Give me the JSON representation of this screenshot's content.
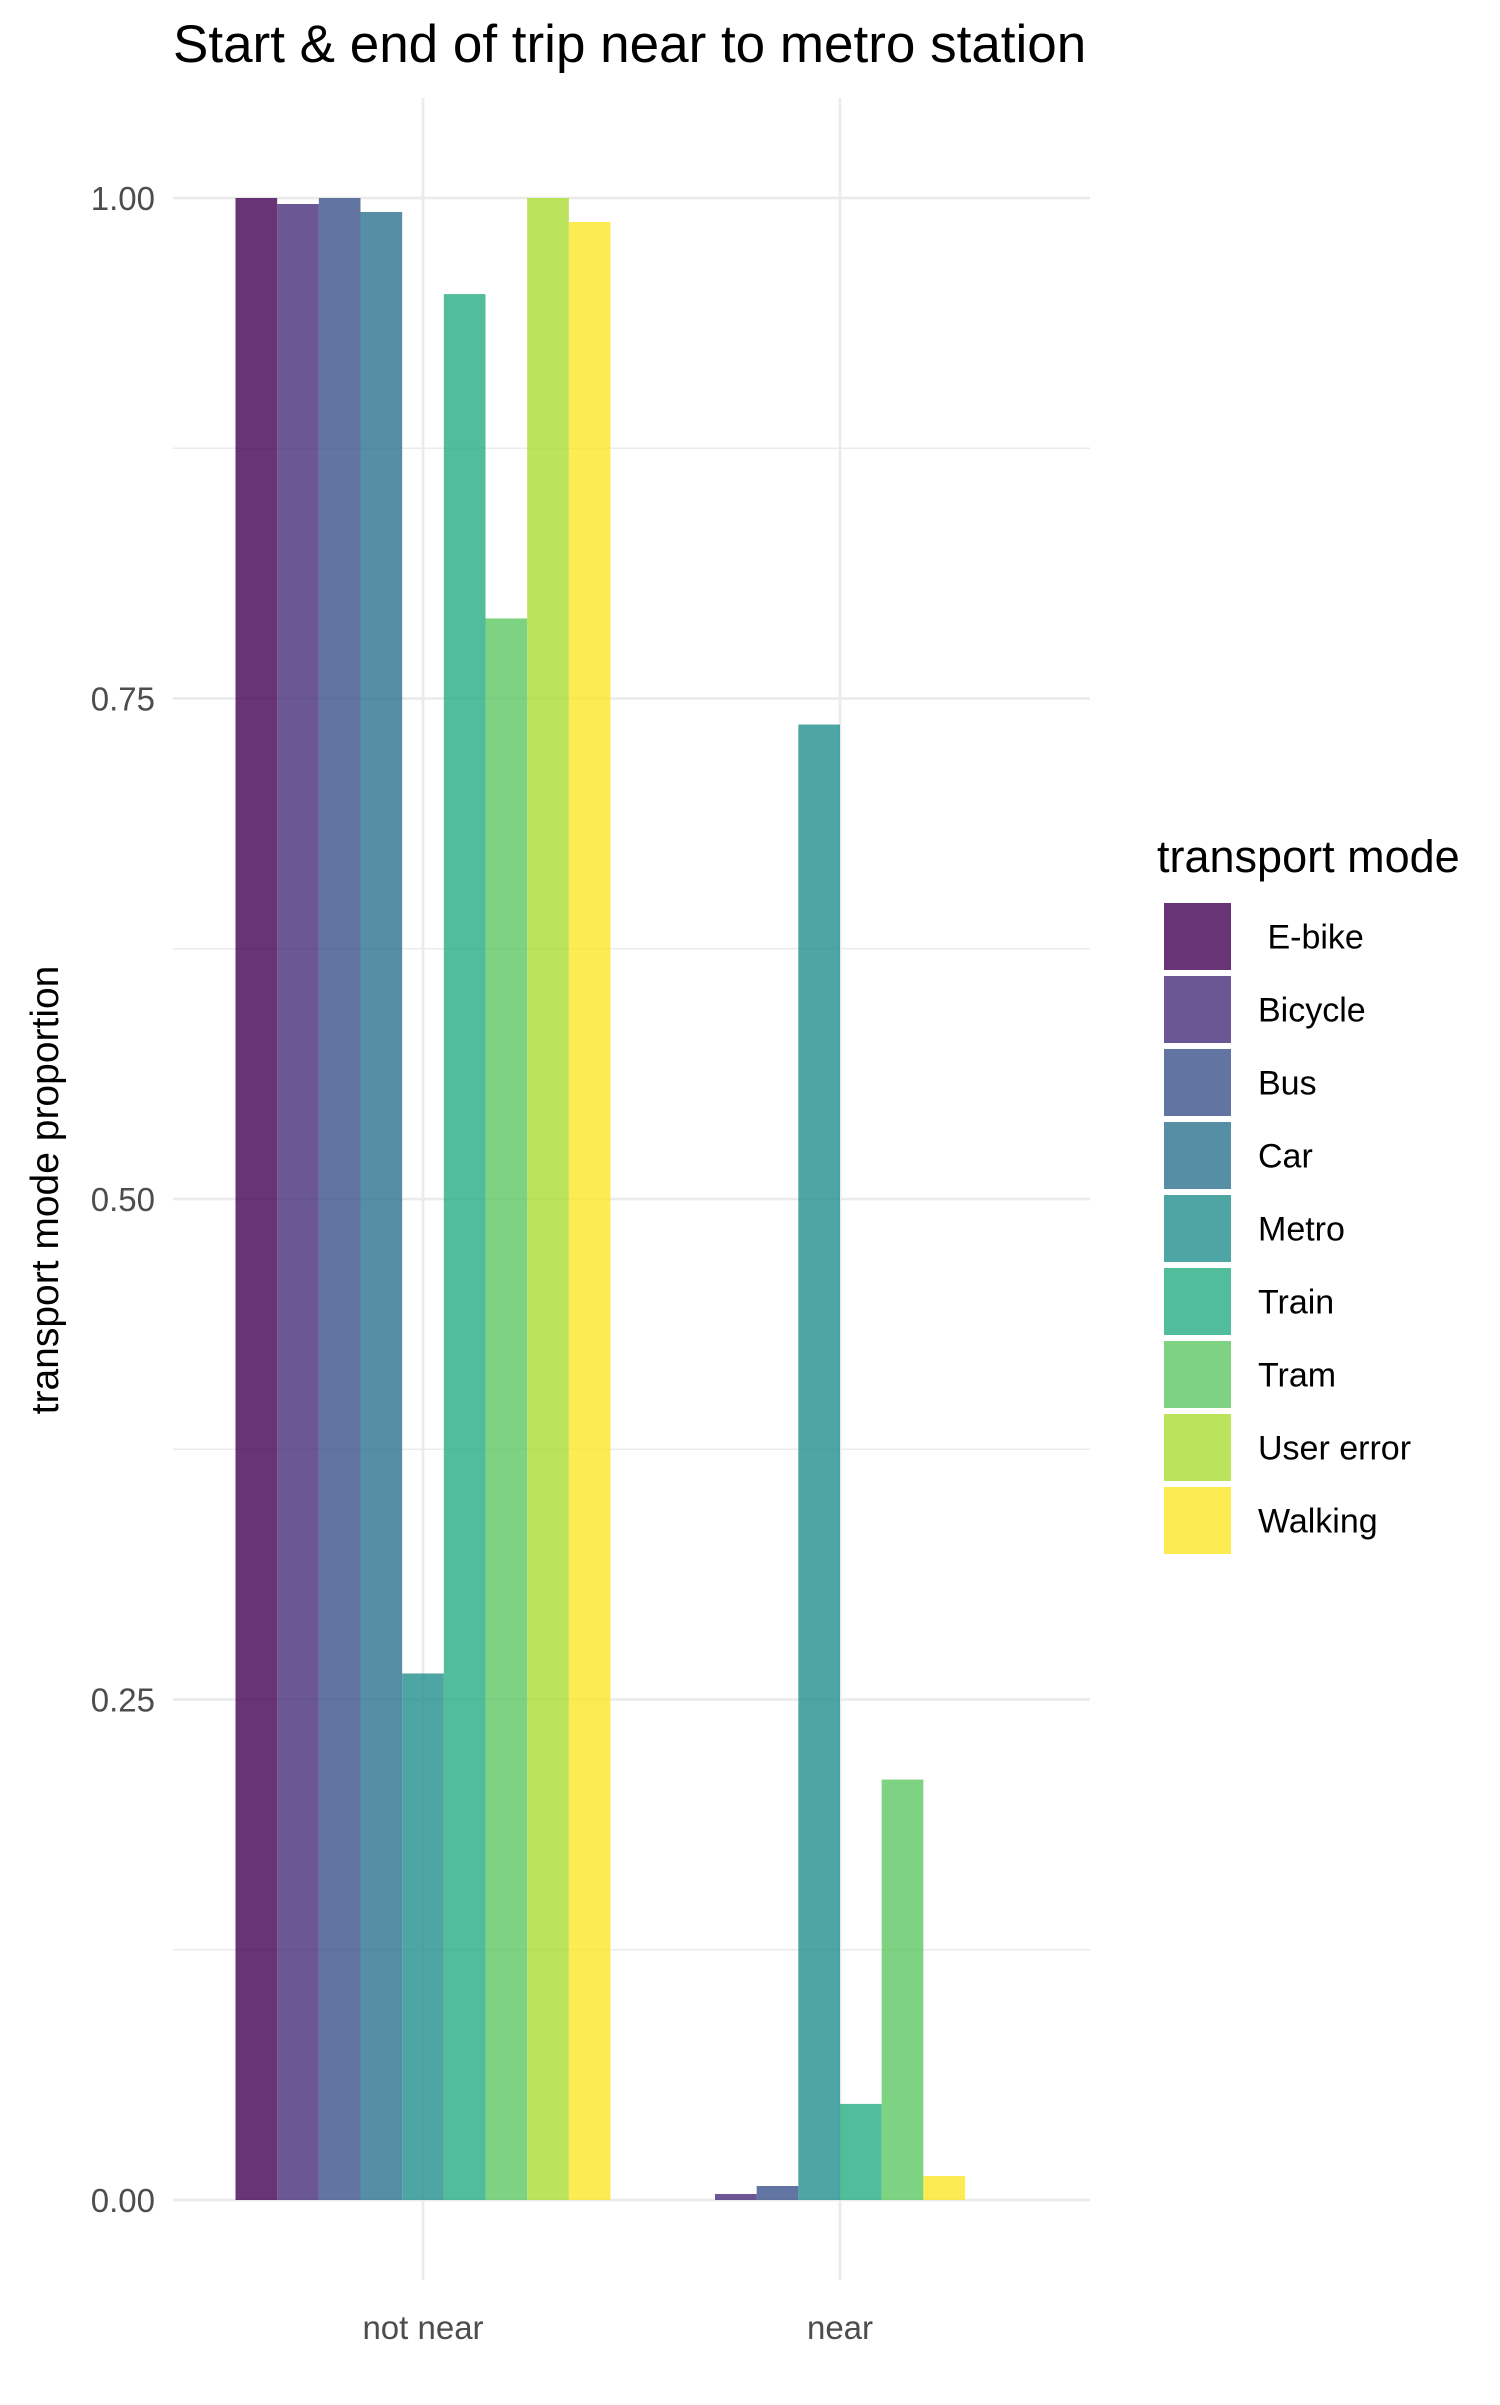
{
  "chart_data": {
    "type": "bar",
    "title": "Start & end of trip near to metro station",
    "xlabel": "",
    "ylabel": "transport mode proportion",
    "categories": [
      "not near",
      "near"
    ],
    "yticks": [
      "0.00",
      "0.25",
      "0.50",
      "0.75",
      "1.00"
    ],
    "ylim": [
      -0.04,
      1.05
    ],
    "grid": true,
    "legend": {
      "title": "transport mode",
      "position": "right"
    },
    "series": [
      {
        "name": " E-bike",
        "color": "#440154",
        "values": [
          1.0,
          null
        ]
      },
      {
        "name": "Bicycle",
        "color": "#472D7B",
        "values": [
          0.997,
          0.003
        ]
      },
      {
        "name": "Bus",
        "color": "#3B528B",
        "values": [
          1.0,
          0.007
        ]
      },
      {
        "name": "Car",
        "color": "#2C728E",
        "values": [
          0.993,
          null
        ]
      },
      {
        "name": "Metro",
        "color": "#21908C",
        "values": [
          0.263,
          0.737
        ]
      },
      {
        "name": "Train",
        "color": "#27AD81",
        "values": [
          0.952,
          0.048
        ]
      },
      {
        "name": "Tram",
        "color": "#5DC863",
        "values": [
          0.79,
          0.21
        ]
      },
      {
        "name": "User error",
        "color": "#AADC32",
        "values": [
          1.0,
          null
        ]
      },
      {
        "name": "Walking",
        "color": "#FDE725",
        "values": [
          0.988,
          0.012
        ]
      }
    ]
  }
}
